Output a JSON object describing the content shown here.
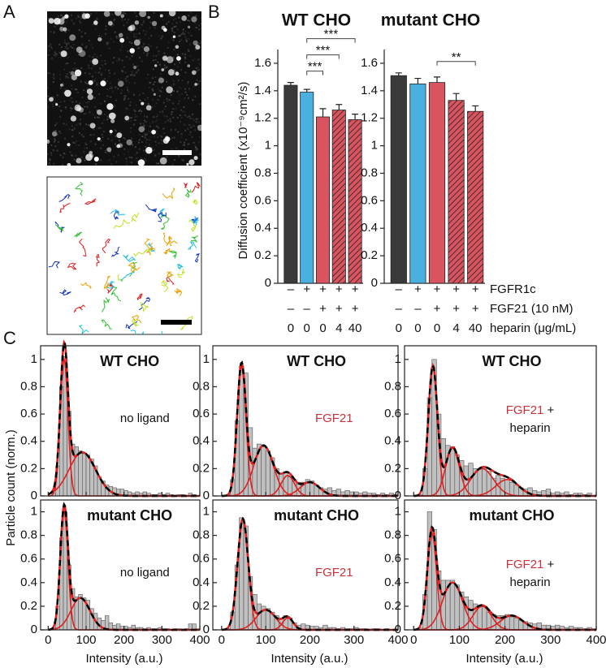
{
  "panels": [
    "A",
    "B",
    "C"
  ],
  "conditions": [
    {
      "label": "FGFR1c",
      "color": "#3aa8e0",
      "marks": [
        "–",
        "+",
        "+",
        "+",
        "+"
      ]
    },
    {
      "label": "FGF21 (10 nM)",
      "color": "#c8323c",
      "marks": [
        "–",
        "–",
        "+",
        "+",
        "+"
      ]
    },
    {
      "label": "heparin (μg/mL)",
      "color": "#111111",
      "marks": [
        0,
        0,
        0,
        4,
        40
      ]
    }
  ],
  "chart_data": [
    {
      "type": "bar",
      "title": "WT CHO",
      "y_label": "Diffusion coefficient (x10⁻⁹cm²/s)",
      "values": [
        1.44,
        1.39,
        1.21,
        1.26,
        1.19
      ],
      "errors": [
        0.02,
        0.02,
        0.06,
        0.04,
        0.04
      ],
      "colors": [
        "#3a3a3a",
        "#4ab0e0",
        "#d9545f",
        "#d9545f",
        "#d9545f"
      ],
      "hatch": [
        false,
        false,
        false,
        true,
        true
      ],
      "ylim": [
        0,
        1.7
      ],
      "yticks": [
        0,
        0.2,
        0.4,
        0.6,
        0.8,
        1,
        1.2,
        1.4,
        1.6
      ],
      "significance": [
        {
          "from": 1,
          "to": 2,
          "label": "***"
        },
        {
          "from": 1,
          "to": 3,
          "label": "***"
        },
        {
          "from": 1,
          "to": 4,
          "label": "***"
        }
      ]
    },
    {
      "type": "bar",
      "title": "mutant CHO",
      "values": [
        1.51,
        1.45,
        1.46,
        1.33,
        1.25
      ],
      "errors": [
        0.02,
        0.04,
        0.04,
        0.05,
        0.04
      ],
      "colors": [
        "#3a3a3a",
        "#4ab0e0",
        "#d9545f",
        "#d9545f",
        "#d9545f"
      ],
      "hatch": [
        false,
        false,
        false,
        true,
        true
      ],
      "ylim": [
        0,
        1.7
      ],
      "yticks": [
        0,
        0.2,
        0.4,
        0.6,
        0.8,
        1,
        1.2,
        1.4,
        1.6
      ],
      "significance": [
        {
          "from": 2,
          "to": 4,
          "label": "**"
        }
      ]
    },
    {
      "type": "histogram",
      "title": "WT CHO",
      "y_label": "Particle count (norm.)",
      "annotation": [
        [
          {
            "text": "no ligand"
          }
        ]
      ],
      "bins": [
        0,
        10,
        20,
        30,
        40,
        50,
        60,
        70,
        80,
        90,
        100,
        110,
        120,
        130,
        140,
        150,
        160,
        170,
        180,
        190,
        200,
        210,
        220,
        230,
        240,
        250,
        260,
        270,
        280,
        290,
        300,
        310,
        320,
        330,
        340,
        350,
        360,
        370,
        380,
        390,
        400
      ],
      "counts": [
        0,
        0.02,
        0.22,
        0.8,
        1.02,
        0.62,
        0.38,
        0.36,
        0.33,
        0.31,
        0.3,
        0.27,
        0.22,
        0.14,
        0.11,
        0.08,
        0.07,
        0.06,
        0.05,
        0.05,
        0.04,
        0.03,
        0.02,
        0.03,
        0.02,
        0.03,
        0.02,
        0.01,
        0.01,
        0.02,
        0.01,
        0.02,
        0.01,
        0,
        0.01,
        0.01,
        0,
        0.02,
        0.01,
        0
      ],
      "fits": [
        {
          "center": 42,
          "width": 10,
          "height": 1.0
        },
        {
          "center": 90,
          "width": 35,
          "height": 0.32
        }
      ],
      "xlim": [
        -20,
        400
      ],
      "ylim": [
        0,
        1.1
      ],
      "xticks": [
        0,
        100,
        200,
        300,
        400
      ],
      "yticks": [
        0,
        0.2,
        0.4,
        0.6,
        0.8,
        1
      ],
      "bar_color": "#c0c0c0",
      "component_color": "#e02020",
      "total_color": "#000000"
    },
    {
      "type": "histogram",
      "title": "WT CHO",
      "annotation": [
        [
          {
            "text": "FGF21",
            "color": "#c8323c"
          }
        ]
      ],
      "bins": [
        0,
        10,
        20,
        30,
        40,
        50,
        60,
        70,
        80,
        90,
        100,
        110,
        120,
        130,
        140,
        150,
        160,
        170,
        180,
        190,
        200,
        210,
        220,
        230,
        240,
        250,
        260,
        270,
        280,
        290,
        300,
        310,
        320,
        330,
        340,
        350,
        360,
        370,
        380,
        390,
        400
      ],
      "counts": [
        0,
        0.01,
        0.12,
        0.55,
        0.95,
        0.9,
        0.5,
        0.35,
        0.38,
        0.36,
        0.33,
        0.28,
        0.2,
        0.16,
        0.17,
        0.14,
        0.12,
        0.1,
        0.1,
        0.12,
        0.11,
        0.08,
        0.06,
        0.05,
        0.06,
        0.04,
        0.05,
        0.03,
        0.04,
        0.03,
        0.03,
        0.02,
        0.03,
        0.02,
        0.02,
        0.01,
        0.02,
        0.01,
        0.02,
        0.01
      ],
      "fits": [
        {
          "center": 45,
          "width": 10,
          "height": 0.95
        },
        {
          "center": 95,
          "width": 22,
          "height": 0.37
        },
        {
          "center": 150,
          "width": 15,
          "height": 0.15
        },
        {
          "center": 200,
          "width": 22,
          "height": 0.1
        }
      ],
      "xlim": [
        -20,
        400
      ],
      "ylim": [
        0,
        1.1
      ],
      "xticks": [
        0,
        100,
        200,
        300,
        400
      ],
      "yticks": [
        0,
        0.2,
        0.4,
        0.6,
        0.8,
        1
      ],
      "bar_color": "#c0c0c0",
      "component_color": "#e02020",
      "total_color": "#000000"
    },
    {
      "type": "histogram",
      "title": "WT CHO",
      "annotation": [
        [
          {
            "text": "FGF21",
            "color": "#c8323c"
          },
          {
            "text": " +"
          }
        ],
        [
          {
            "text": "heparin"
          }
        ]
      ],
      "bins": [
        0,
        10,
        20,
        30,
        40,
        50,
        60,
        70,
        80,
        90,
        100,
        110,
        120,
        130,
        140,
        150,
        160,
        170,
        180,
        190,
        200,
        210,
        220,
        230,
        240,
        250,
        260,
        270,
        280,
        290,
        300,
        310,
        320,
        330,
        340,
        350,
        360,
        370,
        380,
        390,
        400
      ],
      "counts": [
        0,
        0.01,
        0.2,
        0.72,
        1.0,
        0.6,
        0.42,
        0.37,
        0.36,
        0.3,
        0.26,
        0.22,
        0.24,
        0.2,
        0.2,
        0.21,
        0.18,
        0.13,
        0.15,
        0.13,
        0.12,
        0.1,
        0.08,
        0.06,
        0.05,
        0.06,
        0.04,
        0.03,
        0.04,
        0.05,
        0.02,
        0.03,
        0.02,
        0.03,
        0.01,
        0.02,
        0.02,
        0.01,
        0.02,
        0
      ],
      "fits": [
        {
          "center": 42,
          "width": 10,
          "height": 0.95
        },
        {
          "center": 85,
          "width": 15,
          "height": 0.35
        },
        {
          "center": 150,
          "width": 25,
          "height": 0.2
        },
        {
          "center": 205,
          "width": 25,
          "height": 0.12
        }
      ],
      "xlim": [
        -20,
        400
      ],
      "ylim": [
        0,
        1.1
      ],
      "xticks": [
        0,
        100,
        200,
        300,
        400
      ],
      "yticks": [
        0,
        0.2,
        0.4,
        0.6,
        0.8,
        1
      ],
      "bar_color": "#c0c0c0",
      "component_color": "#e02020",
      "total_color": "#000000"
    },
    {
      "type": "histogram",
      "title": "mutant CHO",
      "x_label": "Intensity (a.u.)",
      "annotation": [
        [
          {
            "text": "no ligand"
          }
        ]
      ],
      "bins": [
        0,
        10,
        20,
        30,
        40,
        50,
        60,
        70,
        80,
        90,
        100,
        110,
        120,
        130,
        140,
        150,
        160,
        170,
        180,
        190,
        200,
        210,
        220,
        230,
        240,
        250,
        260,
        270,
        280,
        290,
        300,
        310,
        320,
        330,
        340,
        350,
        360,
        370,
        380,
        390,
        400
      ],
      "counts": [
        0,
        0.02,
        0.2,
        0.78,
        1.0,
        0.55,
        0.35,
        0.28,
        0.3,
        0.27,
        0.25,
        0.18,
        0.14,
        0.1,
        0.08,
        0.12,
        0.06,
        0.04,
        0.05,
        0.03,
        0.03,
        0.02,
        0.04,
        0.02,
        0.02,
        0.01,
        0.02,
        0.01,
        0.01,
        0.02,
        0.01,
        0.01,
        0,
        0.01,
        0.01,
        0,
        0.01,
        0.05,
        0.05,
        0.01
      ],
      "fits": [
        {
          "center": 42,
          "width": 10,
          "height": 1.0
        },
        {
          "center": 85,
          "width": 25,
          "height": 0.27
        }
      ],
      "xlim": [
        -20,
        400
      ],
      "ylim": [
        0,
        1.1
      ],
      "xticks": [
        0,
        100,
        200,
        300,
        400
      ],
      "yticks": [
        0,
        0.2,
        0.4,
        0.6,
        0.8,
        1
      ],
      "bar_color": "#c0c0c0",
      "component_color": "#e02020",
      "total_color": "#000000"
    },
    {
      "type": "histogram",
      "title": "mutant CHO",
      "x_label": "Intensity (a.u.)",
      "annotation": [
        [
          {
            "text": "FGF21",
            "color": "#c8323c"
          }
        ]
      ],
      "bins": [
        0,
        10,
        20,
        30,
        40,
        50,
        60,
        70,
        80,
        90,
        100,
        110,
        120,
        130,
        140,
        150,
        160,
        170,
        180,
        190,
        200,
        210,
        220,
        230,
        240,
        250,
        260,
        270,
        280,
        290,
        300,
        310,
        320,
        330,
        340,
        350,
        360,
        370,
        380,
        390,
        400
      ],
      "counts": [
        0,
        0.01,
        0.15,
        0.55,
        0.95,
        0.88,
        0.45,
        0.3,
        0.22,
        0.2,
        0.18,
        0.15,
        0.12,
        0.1,
        0.12,
        0.1,
        0.06,
        0.04,
        0.05,
        0.04,
        0.03,
        0.03,
        0.02,
        0.04,
        0.02,
        0.02,
        0.01,
        0.02,
        0.01,
        0.01,
        0.02,
        0.01,
        0.01,
        0,
        0.01,
        0.01,
        0,
        0.01,
        0,
        0
      ],
      "fits": [
        {
          "center": 48,
          "width": 12,
          "height": 0.93
        },
        {
          "center": 100,
          "width": 22,
          "height": 0.17
        },
        {
          "center": 150,
          "width": 12,
          "height": 0.1
        }
      ],
      "xlim": [
        -20,
        400
      ],
      "ylim": [
        0,
        1.1
      ],
      "xticks": [
        0,
        100,
        200,
        300,
        400
      ],
      "yticks": [
        0,
        0.2,
        0.4,
        0.6,
        0.8,
        1
      ],
      "bar_color": "#c0c0c0",
      "component_color": "#e02020",
      "total_color": "#000000"
    },
    {
      "type": "histogram",
      "title": "mutant CHO",
      "x_label": "Intensity (a.u.)",
      "annotation": [
        [
          {
            "text": "FGF21",
            "color": "#c8323c"
          },
          {
            "text": " +"
          }
        ],
        [
          {
            "text": "heparin"
          }
        ]
      ],
      "bins": [
        0,
        10,
        20,
        30,
        40,
        50,
        60,
        70,
        80,
        90,
        100,
        110,
        120,
        130,
        140,
        150,
        160,
        170,
        180,
        190,
        200,
        210,
        220,
        230,
        240,
        250,
        260,
        270,
        280,
        290,
        300,
        310,
        320,
        330,
        340,
        350,
        360,
        370,
        380,
        390,
        400
      ],
      "counts": [
        0,
        0.02,
        0.3,
        1.0,
        0.85,
        0.5,
        0.42,
        0.42,
        0.42,
        0.38,
        0.32,
        0.28,
        0.25,
        0.22,
        0.2,
        0.2,
        0.15,
        0.13,
        0.12,
        0.12,
        0.13,
        0.11,
        0.1,
        0.08,
        0.07,
        0.06,
        0.05,
        0.06,
        0.04,
        0.04,
        0.03,
        0.04,
        0.03,
        0.02,
        0.03,
        0.02,
        0.02,
        0.01,
        0.02,
        0.01
      ],
      "fits": [
        {
          "center": 40,
          "width": 10,
          "height": 0.82
        },
        {
          "center": 85,
          "width": 22,
          "height": 0.4
        },
        {
          "center": 150,
          "width": 20,
          "height": 0.2
        },
        {
          "center": 215,
          "width": 25,
          "height": 0.12
        }
      ],
      "xlim": [
        -20,
        400
      ],
      "ylim": [
        0,
        1.1
      ],
      "xticks": [
        0,
        100,
        200,
        300,
        400
      ],
      "yticks": [
        0,
        0.2,
        0.4,
        0.6,
        0.8,
        1
      ],
      "bar_color": "#c0c0c0",
      "component_color": "#e02020",
      "total_color": "#000000"
    }
  ]
}
